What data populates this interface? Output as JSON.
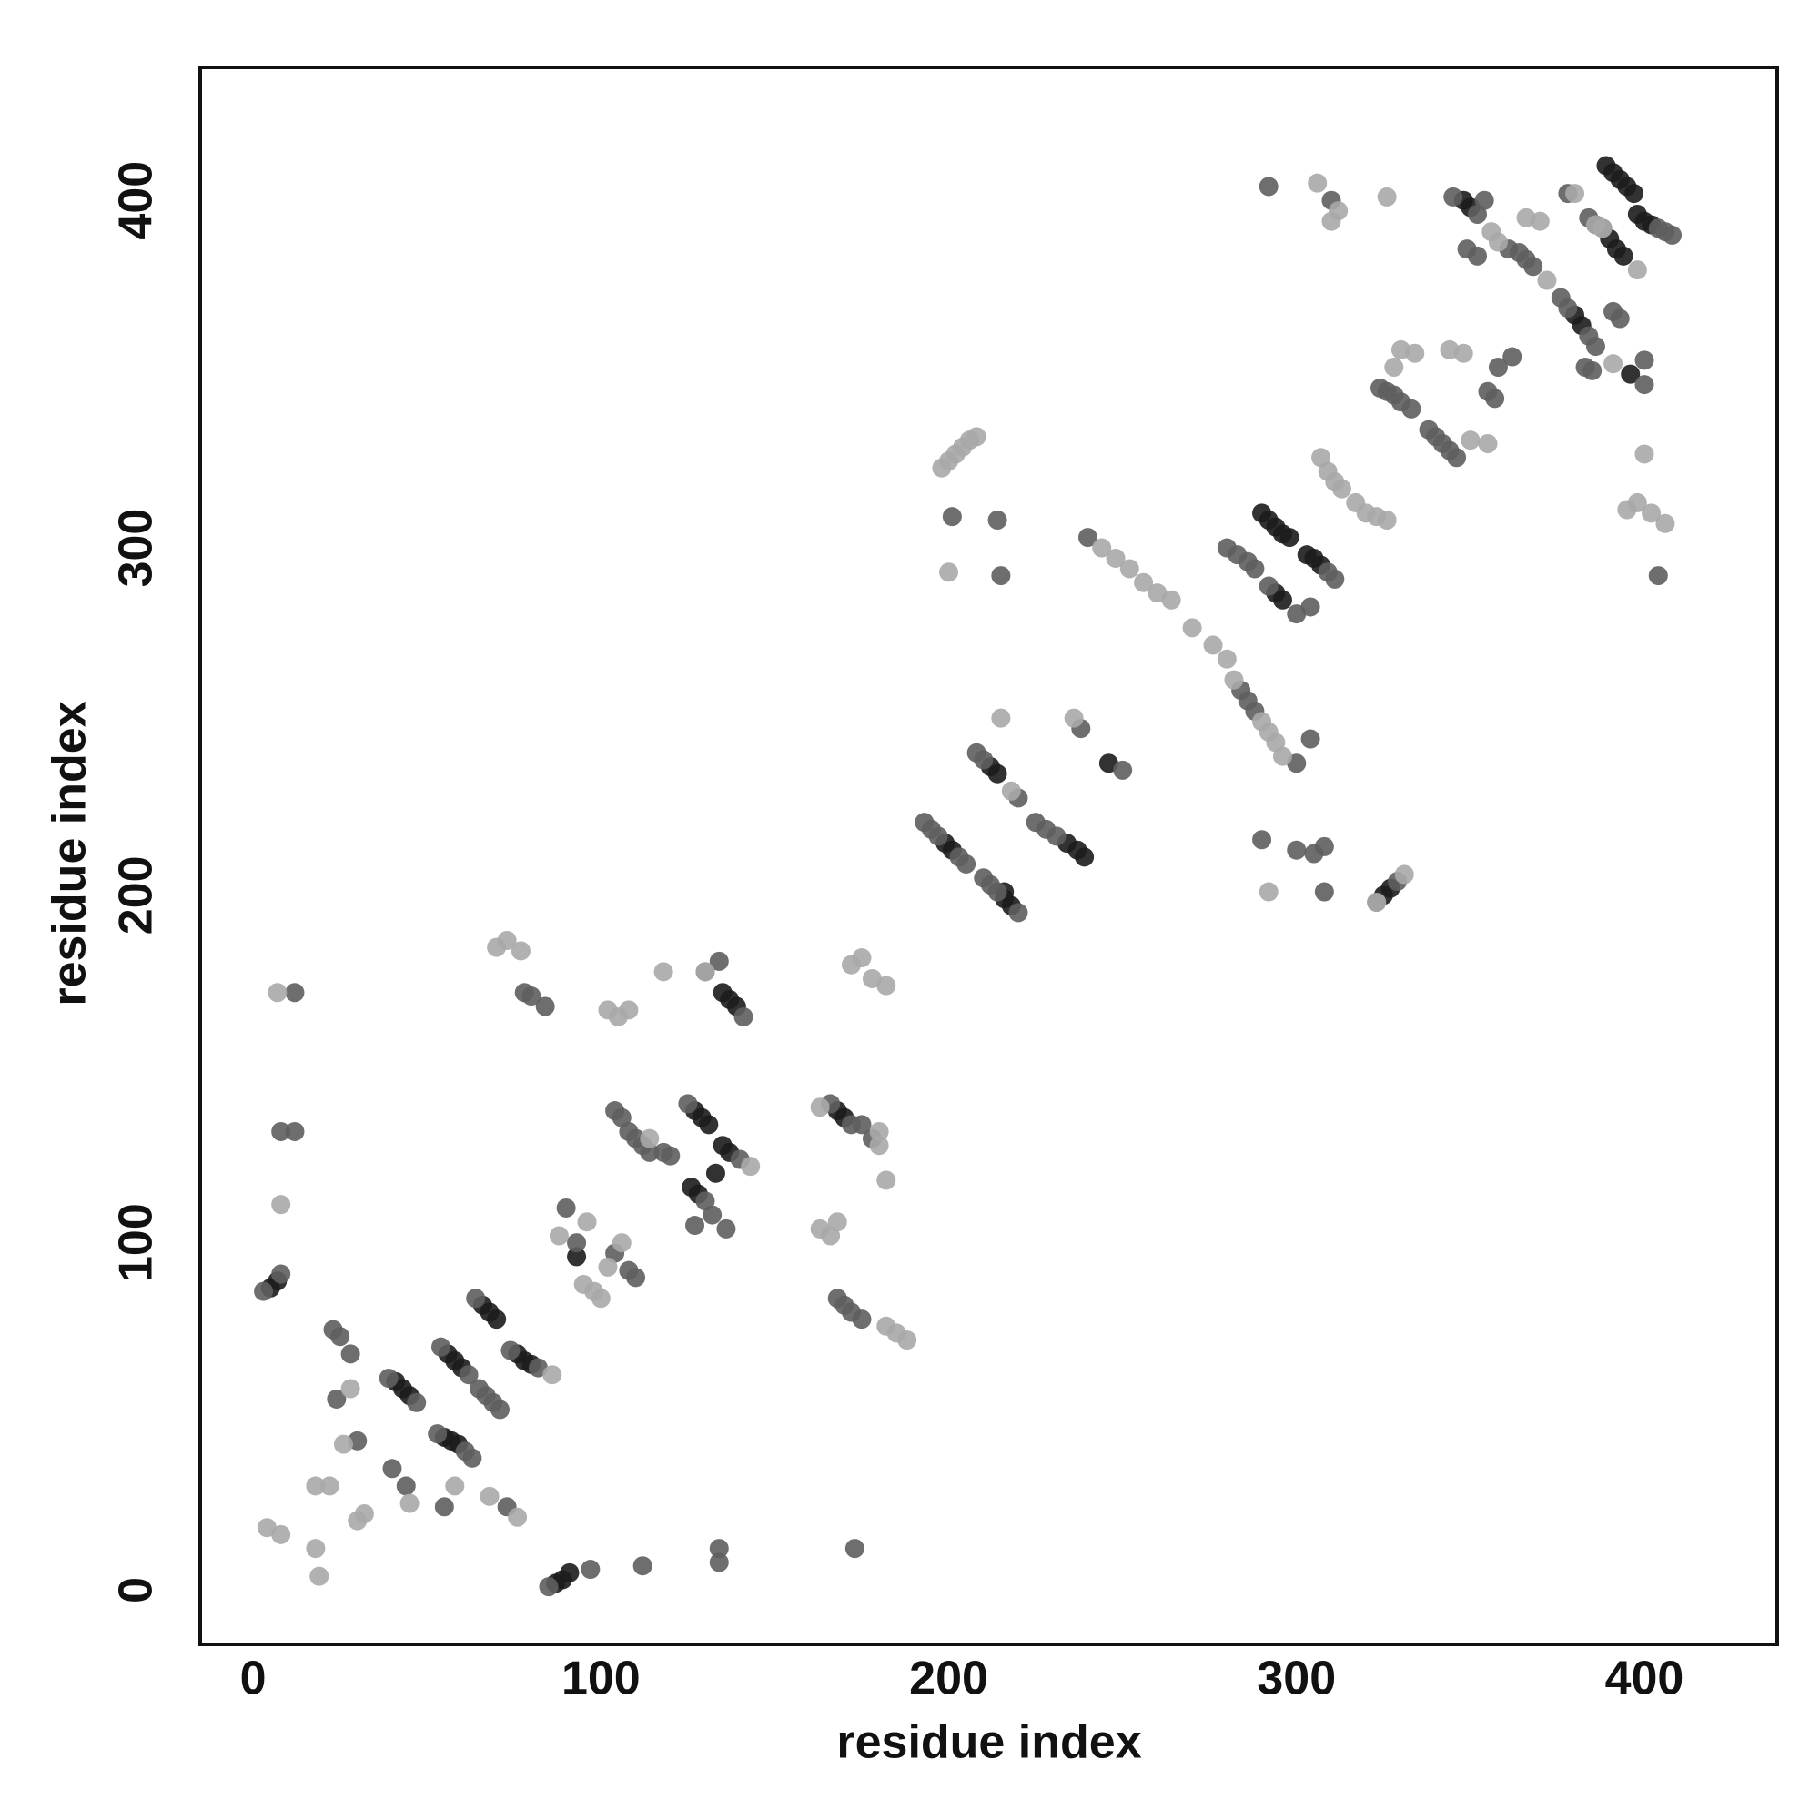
{
  "chart_data": {
    "type": "scatter",
    "x_label": "residue index",
    "y_label": "residue index",
    "xlim": [
      -15.2,
      438.2
    ],
    "ylim": [
      -15.6,
      438.3
    ],
    "xticks": [
      0,
      100,
      200,
      300,
      400
    ],
    "yticks": [
      0,
      100,
      200,
      300,
      400
    ],
    "grid": false,
    "series": [
      {
        "color": "#1c1c1c",
        "x": [
          5,
          7,
          41,
          43,
          45,
          56,
          58,
          60,
          55,
          57,
          59,
          66,
          68,
          70,
          76,
          78,
          80,
          87,
          89,
          91,
          93,
          127,
          129,
          131,
          133,
          126,
          128,
          135,
          137,
          135,
          137,
          139,
          168,
          170,
          199,
          201,
          212,
          214,
          216,
          216,
          218,
          234,
          237,
          239,
          246,
          290,
          292,
          294,
          296,
          298,
          294,
          296,
          303,
          305,
          307,
          325,
          327,
          348,
          350,
          389,
          391,
          393,
          395,
          397,
          390,
          392,
          394,
          398,
          400,
          402,
          380,
          382,
          396
        ],
        "y": [
          87,
          89,
          60,
          58,
          56,
          68,
          66,
          64,
          44,
          43,
          42,
          82,
          80,
          78,
          68,
          66,
          65,
          2,
          3,
          5,
          96,
          138,
          136,
          134,
          120,
          116,
          114,
          128,
          126,
          172,
          170,
          168,
          138,
          136,
          215,
          213,
          237,
          235,
          201,
          199,
          197,
          215,
          213,
          211,
          238,
          310,
          308,
          306,
          304,
          303,
          287,
          285,
          298,
          297,
          295,
          200,
          202,
          400,
          398,
          410,
          408,
          406,
          404,
          402,
          389,
          386,
          384,
          396,
          394,
          393,
          367,
          364,
          350
        ]
      },
      {
        "color": "#5e5e5e",
        "x": [
          3,
          8,
          8,
          12,
          12,
          23,
          25,
          24,
          28,
          30,
          39,
          47,
          54,
          62,
          53,
          61,
          63,
          64,
          65,
          67,
          69,
          71,
          74,
          82,
          78,
          80,
          84,
          40,
          44,
          55,
          73,
          85,
          97,
          90,
          93,
          104,
          108,
          110,
          104,
          106,
          108,
          110,
          112,
          114,
          118,
          120,
          125,
          130,
          132,
          127,
          136,
          140,
          130,
          134,
          141,
          112,
          134,
          134,
          166,
          172,
          175,
          178,
          168,
          170,
          172,
          175,
          173,
          193,
          195,
          197,
          203,
          205,
          201,
          214,
          215,
          208,
          210,
          220,
          210,
          212,
          214,
          220,
          225,
          228,
          231,
          238,
          240,
          250,
          284,
          286,
          288,
          300,
          304,
          280,
          283,
          286,
          288,
          292,
          300,
          304,
          309,
          311,
          290,
          300,
          305,
          308,
          308,
          292,
          310,
          323,
          329,
          324,
          326,
          328,
          330,
          333,
          338,
          340,
          342,
          344,
          346,
          345,
          352,
          354,
          349,
          352,
          355,
          357,
          358,
          362,
          361,
          364,
          366,
          368,
          376,
          378,
          384,
          386,
          383,
          385,
          378,
          384,
          386,
          388,
          404,
          406,
          408,
          391,
          393,
          400,
          400,
          404
        ],
        "y": [
          86,
          91,
          132,
          132,
          172,
          75,
          73,
          55,
          68,
          43,
          61,
          54,
          70,
          62,
          45,
          40,
          38,
          84,
          58,
          56,
          54,
          52,
          69,
          64,
          172,
          171,
          168,
          35,
          30,
          24,
          24,
          1,
          6,
          110,
          100,
          97,
          132,
          130,
          138,
          136,
          92,
          90,
          128,
          126,
          126,
          125,
          140,
          112,
          108,
          105,
          104,
          124,
          178,
          181,
          165,
          7,
          8,
          12,
          140,
          134,
          134,
          130,
          84,
          82,
          80,
          78,
          12,
          221,
          219,
          217,
          211,
          209,
          309,
          308,
          292,
          241,
          239,
          228,
          205,
          203,
          201,
          195,
          221,
          219,
          217,
          248,
          303,
          236,
          259,
          256,
          253,
          238,
          245,
          300,
          298,
          296,
          294,
          289,
          281,
          283,
          293,
          291,
          216,
          213,
          212,
          214,
          201,
          404,
          400,
          198,
          204,
          346,
          345,
          344,
          342,
          340,
          334,
          332,
          330,
          328,
          326,
          401,
          396,
          400,
          386,
          384,
          345,
          343,
          352,
          355,
          386,
          385,
          383,
          381,
          372,
          369,
          361,
          358,
          352,
          351,
          402,
          395,
          393,
          392,
          392,
          391,
          390,
          368,
          366,
          354,
          347,
          292
        ]
      },
      {
        "color": "#a8a8a8",
        "x": [
          7,
          8,
          4,
          8,
          18,
          19,
          18,
          22,
          28,
          30,
          32,
          26,
          45,
          58,
          68,
          76,
          70,
          73,
          77,
          86,
          88,
          96,
          95,
          98,
          100,
          102,
          106,
          102,
          105,
          108,
          114,
          118,
          143,
          130,
          163,
          180,
          182,
          180,
          163,
          166,
          168,
          182,
          185,
          188,
          172,
          175,
          178,
          182,
          198,
          200,
          202,
          204,
          206,
          208,
          200,
          218,
          215,
          236,
          244,
          248,
          252,
          256,
          260,
          264,
          270,
          276,
          280,
          282,
          290,
          292,
          294,
          296,
          292,
          306,
          312,
          310,
          326,
          307,
          309,
          311,
          313,
          317,
          320,
          323,
          326,
          323,
          331,
          330,
          334,
          328,
          350,
          348,
          344,
          356,
          355,
          358,
          366,
          370,
          372,
          380,
          386,
          388,
          398,
          391,
          395,
          398,
          402,
          400,
          406
        ],
        "y": [
          172,
          111,
          18,
          16,
          12,
          4,
          30,
          30,
          58,
          20,
          22,
          42,
          25,
          30,
          27,
          21,
          185,
          187,
          184,
          62,
          102,
          106,
          88,
          86,
          84,
          93,
          100,
          167,
          165,
          167,
          130,
          178,
          122,
          178,
          139,
          132,
          118,
          128,
          104,
          102,
          106,
          76,
          74,
          72,
          180,
          182,
          176,
          174,
          323,
          325,
          327,
          329,
          331,
          332,
          293,
          230,
          251,
          251,
          300,
          297,
          294,
          290,
          287,
          285,
          277,
          272,
          268,
          262,
          250,
          247,
          244,
          240,
          201,
          405,
          397,
          394,
          401,
          326,
          322,
          319,
          317,
          313,
          310,
          309,
          308,
          198,
          206,
          357,
          356,
          352,
          331,
          356,
          357,
          391,
          330,
          388,
          395,
          394,
          377,
          402,
          393,
          392,
          380,
          353,
          311,
          313,
          310,
          327,
          307
        ]
      }
    ]
  }
}
